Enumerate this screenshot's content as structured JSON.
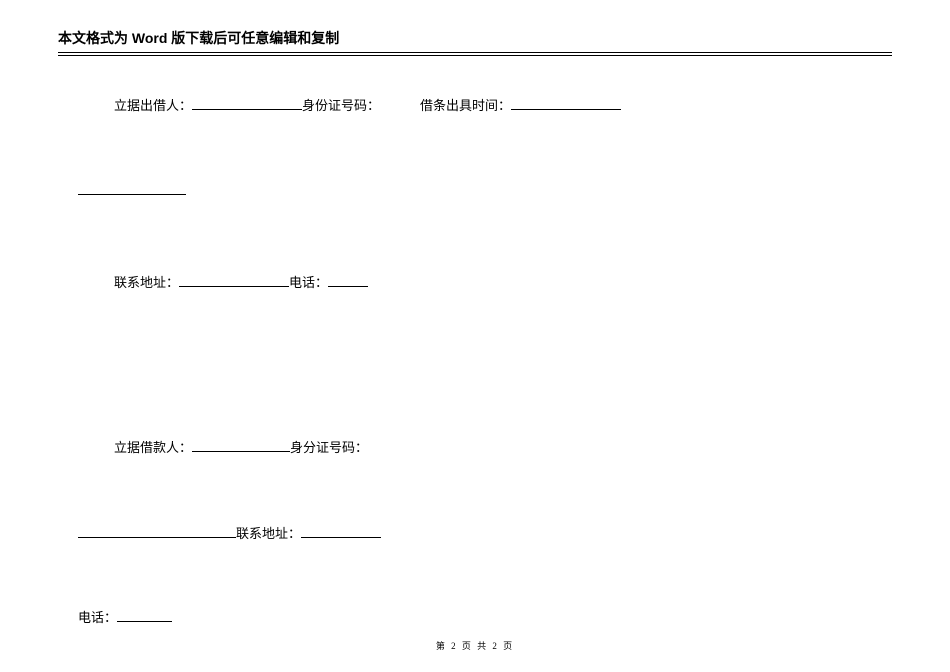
{
  "header": {
    "title": "本文格式为 Word 版下载后可任意编辑和复制"
  },
  "line1": {
    "label1": "立据出借人：",
    "label2": "身份证号码：",
    "label3": "借条出具时间："
  },
  "line3": {
    "label1": "联系地址：",
    "label2": "电话："
  },
  "line4": {
    "label1": "立据借款人：",
    "label2": "身分证号码："
  },
  "line5": {
    "label1": "联系地址："
  },
  "line6": {
    "label1": "电话："
  },
  "footer": {
    "text": "第 2 页 共 2 页"
  }
}
